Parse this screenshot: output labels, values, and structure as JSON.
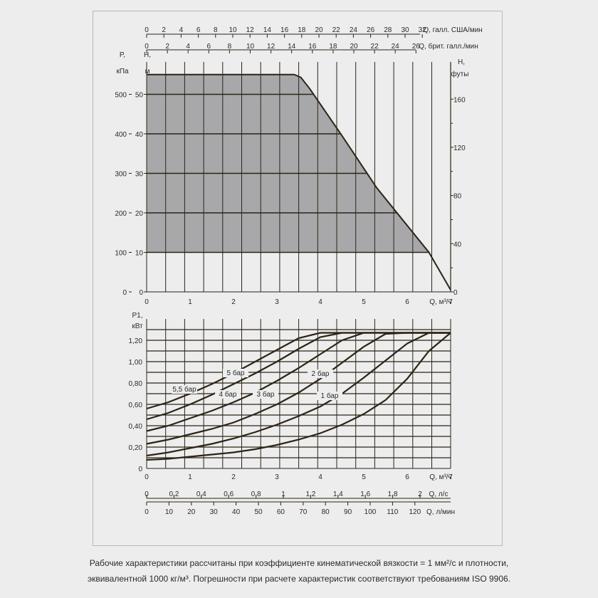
{
  "caption": {
    "line1": "Рабочие характеристики рассчитаны при коэффициенте кинематической вязкости = 1 мм²/с и плотности,",
    "line2": "эквивалентной 1000 кг/м³. Погрешности при расчете характеристик соответствуют требованиям ISO 9906."
  },
  "colors": {
    "fill": "#a8a8aa",
    "line": "#2c2416",
    "grid": "#2c2416",
    "background": "#ededed"
  },
  "chart_data": [
    {
      "type": "area",
      "name": "head",
      "x_ticks": [
        "0",
        "1",
        "2",
        "3",
        "4",
        "5",
        "6",
        "7"
      ],
      "xlabel": "Q, м³/ч",
      "xlim": [
        0,
        7
      ],
      "top_axis_us": {
        "label": "Q, галл. США/мин",
        "ticks": [
          "0",
          "2",
          "4",
          "6",
          "8",
          "10",
          "12",
          "14",
          "16",
          "18",
          "20",
          "22",
          "24",
          "26",
          "28",
          "30",
          "32"
        ]
      },
      "top_axis_uk": {
        "label": "Q, брит. галл./мин",
        "ticks": [
          "0",
          "2",
          "4",
          "6",
          "8",
          "10",
          "12",
          "14",
          "16",
          "18",
          "20",
          "22",
          "24",
          "26"
        ]
      },
      "y_ticks_m": [
        "0",
        "10",
        "20",
        "30",
        "40",
        "50"
      ],
      "ylabel_m": [
        "H,",
        "м"
      ],
      "ylim_m": [
        0,
        55
      ],
      "y_ticks_kpa": [
        "0",
        "100",
        "200",
        "300",
        "400",
        "500"
      ],
      "ylabel_kpa": [
        "P,",
        "кПа"
      ],
      "y_ticks_ft": [
        "0",
        "40",
        "80",
        "120",
        "160"
      ],
      "ylabel_ft": [
        "H,",
        "футы"
      ],
      "curve": {
        "x": [
          0,
          3.4,
          3.55,
          3.75,
          4.5,
          5.3,
          6.5,
          7.0
        ],
        "y": [
          55,
          55,
          54.3,
          51.5,
          39.5,
          26.3,
          10,
          0.5
        ]
      },
      "area_bottom": 10
    },
    {
      "type": "line",
      "name": "power",
      "x": [
        0,
        0.5,
        1,
        1.5,
        2,
        2.5,
        3,
        3.5,
        4,
        4.5,
        5,
        5.5,
        6,
        6.5,
        7
      ],
      "x_ticks": [
        "0",
        "1",
        "2",
        "3",
        "4",
        "5",
        "6",
        "7"
      ],
      "xlabel": "Q, м³/ч",
      "xlim": [
        0,
        7
      ],
      "y_ticks": [
        "0",
        "0,20",
        "0,40",
        "0,60",
        "0,80",
        "1,00",
        "1,20"
      ],
      "ylabel": [
        "P1,",
        "кВт"
      ],
      "ylim": [
        0,
        1.35
      ],
      "ls_axis": {
        "label": "Q, л/с",
        "ticks": [
          "0",
          "0,2",
          "0,4",
          "0,6",
          "0,8",
          "1",
          "1,2",
          "1,4",
          "1,6",
          "1,8",
          "2"
        ]
      },
      "lmin_axis": {
        "label": "Q, л/мин",
        "ticks": [
          "0",
          "10",
          "20",
          "30",
          "40",
          "50",
          "60",
          "70",
          "80",
          "90",
          "100",
          "110",
          "120"
        ]
      },
      "series": [
        {
          "name": "5,5 бар",
          "values": [
            0.56,
            0.62,
            0.7,
            0.79,
            0.89,
            1.0,
            1.11,
            1.22,
            1.27,
            1.27,
            1.27,
            1.27,
            1.27,
            1.27,
            1.27
          ]
        },
        {
          "name": "5 бар",
          "values": [
            0.46,
            0.52,
            0.6,
            0.69,
            0.79,
            0.89,
            1.0,
            1.12,
            1.23,
            1.27,
            1.27,
            1.27,
            1.27,
            1.27,
            1.27
          ]
        },
        {
          "name": "4 бар",
          "values": [
            0.35,
            0.4,
            0.47,
            0.54,
            0.62,
            0.71,
            0.82,
            0.94,
            1.07,
            1.2,
            1.27,
            1.27,
            1.27,
            1.27,
            1.27
          ]
        },
        {
          "name": "3 бар",
          "values": [
            0.23,
            0.27,
            0.32,
            0.37,
            0.43,
            0.51,
            0.6,
            0.71,
            0.84,
            0.99,
            1.14,
            1.26,
            1.27,
            1.27,
            1.27
          ]
        },
        {
          "name": "2 бар",
          "values": [
            0.12,
            0.15,
            0.19,
            0.23,
            0.28,
            0.34,
            0.41,
            0.49,
            0.58,
            0.7,
            0.85,
            1.01,
            1.17,
            1.27,
            1.27
          ]
        },
        {
          "name": "1 бар",
          "values": [
            0.08,
            0.09,
            0.11,
            0.13,
            0.15,
            0.18,
            0.22,
            0.27,
            0.33,
            0.41,
            0.51,
            0.64,
            0.84,
            1.1,
            1.27
          ]
        }
      ]
    }
  ]
}
